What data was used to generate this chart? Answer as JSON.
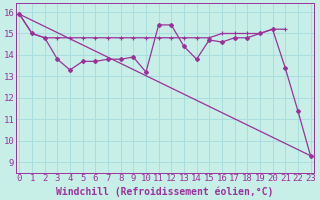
{
  "xlabel": "Windchill (Refroidissement éolien,°C)",
  "background_color": "#c8eee8",
  "grid_color": "#aadddd",
  "line_color": "#993399",
  "x_ticks": [
    0,
    1,
    2,
    3,
    4,
    5,
    6,
    7,
    8,
    9,
    10,
    11,
    12,
    13,
    14,
    15,
    16,
    17,
    18,
    19,
    20,
    21,
    22,
    23
  ],
  "y_ticks": [
    9,
    10,
    11,
    12,
    13,
    14,
    15,
    16
  ],
  "ylim": [
    8.5,
    16.4
  ],
  "xlim": [
    -0.3,
    23.3
  ],
  "series1_x": [
    0,
    1,
    2,
    3,
    4,
    5,
    6,
    7,
    8,
    9,
    10,
    11,
    12,
    13,
    14,
    15,
    16,
    17,
    18,
    19,
    20,
    21,
    22,
    23
  ],
  "series1_y": [
    15.9,
    15.0,
    14.8,
    13.8,
    13.3,
    13.7,
    13.7,
    13.8,
    13.8,
    13.9,
    13.2,
    15.4,
    15.4,
    14.4,
    13.8,
    14.7,
    14.6,
    14.8,
    14.8,
    15.0,
    15.2,
    13.4,
    11.4,
    9.3
  ],
  "series2_x": [
    0,
    1,
    2,
    3,
    4,
    5,
    6,
    7,
    8,
    9,
    10,
    11,
    12,
    13,
    14,
    15,
    16,
    17,
    18,
    19,
    20,
    21
  ],
  "series2_y": [
    15.9,
    15.0,
    14.8,
    14.8,
    14.8,
    14.8,
    14.8,
    14.8,
    14.8,
    14.8,
    14.8,
    14.8,
    14.8,
    14.8,
    14.8,
    14.8,
    15.0,
    15.0,
    15.0,
    15.0,
    15.2,
    15.2
  ],
  "series3_x": [
    0,
    23
  ],
  "series3_y": [
    15.9,
    9.3
  ],
  "tick_fontsize": 6.5,
  "xlabel_fontsize": 7,
  "marker_size": 2.0,
  "linewidth": 0.9
}
